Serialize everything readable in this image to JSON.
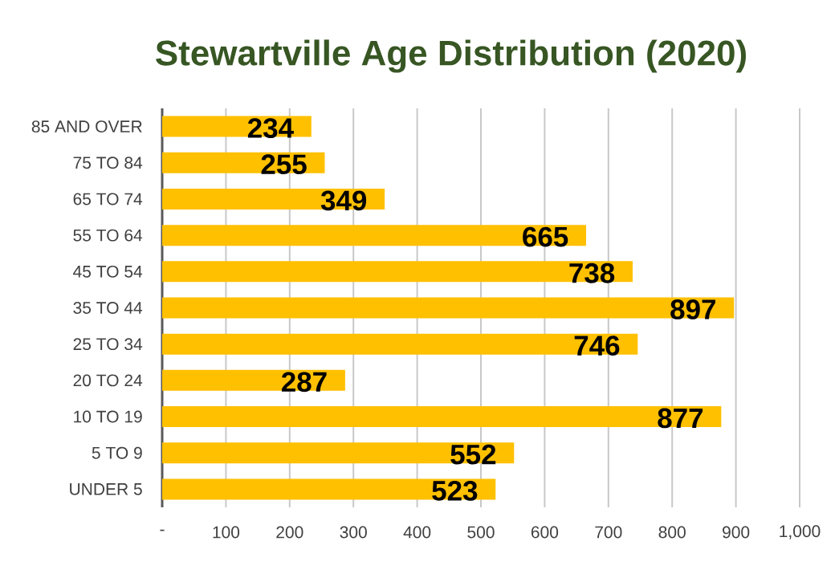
{
  "chart_data": {
    "type": "bar",
    "orientation": "horizontal",
    "title": "Stewartville Age Distribution (2020)",
    "categories": [
      "85 AND OVER",
      "75 TO 84",
      "65 TO 74",
      "55 TO 64",
      "45 TO 54",
      "35 TO 44",
      "25 TO 34",
      "20 TO 24",
      "10 TO 19",
      "5 TO 9",
      "UNDER 5"
    ],
    "values": [
      234,
      255,
      349,
      665,
      738,
      897,
      746,
      287,
      877,
      552,
      523
    ],
    "color": "#ffc000",
    "xlim": [
      0,
      1000
    ],
    "xticks": [
      {
        "value": 0,
        "label": "-"
      },
      100,
      200,
      300,
      400,
      500,
      600,
      700,
      800,
      900,
      {
        "value": 1000,
        "label": "1,000"
      }
    ],
    "grid": "x",
    "data_labels": true
  }
}
